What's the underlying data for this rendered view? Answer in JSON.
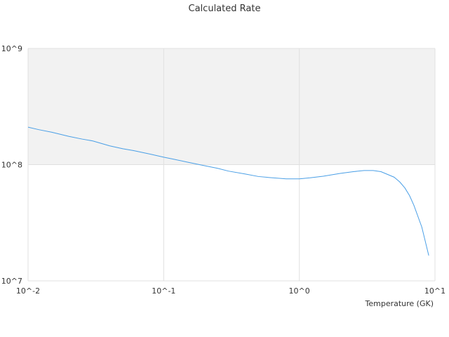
{
  "chart_data": {
    "type": "line",
    "title": "Calculated Rate",
    "xlabel": "Temperature (GK)",
    "ylabel": "",
    "xscale": "log",
    "yscale": "log",
    "xlim": [
      0.01,
      10
    ],
    "ylim": [
      10000000,
      1000000000
    ],
    "x_ticks": [
      "10^-2",
      "10^-1",
      "10^0",
      "10^1"
    ],
    "y_ticks": [
      "10^7",
      "10^8",
      "10^9"
    ],
    "shaded_band": {
      "y_from": 100000000,
      "y_to": 1000000000,
      "color": "#f2f2f2"
    },
    "grid": true,
    "legend": "none",
    "series": [
      {
        "color": "#4a9fe6",
        "x": [
          0.01,
          0.012,
          0.015,
          0.02,
          0.025,
          0.03,
          0.04,
          0.05,
          0.06,
          0.08,
          0.1,
          0.12,
          0.15,
          0.2,
          0.25,
          0.3,
          0.4,
          0.5,
          0.6,
          0.8,
          1.0,
          1.2,
          1.5,
          2.0,
          2.5,
          3.0,
          3.5,
          4.0,
          5.0,
          5.5,
          6.0,
          6.5,
          7.0,
          8.0,
          9.0
        ],
        "values": [
          210000000,
          200000000,
          190000000,
          175000000,
          166000000,
          160000000,
          145000000,
          137000000,
          132000000,
          123000000,
          116000000,
          111000000,
          105000000,
          98000000,
          93000000,
          88000000,
          83000000,
          79000000,
          77500000,
          75500000,
          75500000,
          77000000,
          79500000,
          84000000,
          87000000,
          89000000,
          89000000,
          87000000,
          78000000,
          71000000,
          63000000,
          54000000,
          44500000,
          29000000,
          16500000
        ]
      }
    ]
  }
}
